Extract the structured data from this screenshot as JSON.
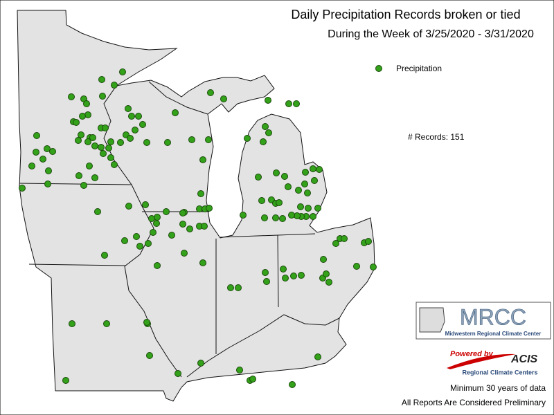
{
  "header": {
    "title": "Daily Precipitation Records broken or tied",
    "subtitle": "During the Week of 3/25/2020 - 3/31/2020"
  },
  "legend": {
    "label": "Precipitation"
  },
  "records": "# Records: 151",
  "logo": {
    "name": "MRCC",
    "full_name": "Midwestern Regional Climate Center",
    "powered": "Powered by",
    "acis": "ACIS",
    "acis_name": "Regional Climate Centers"
  },
  "footer": {
    "line1": "Minimum 30 years of data",
    "line2": "All Reports Are Considered Preliminary"
  }
}
